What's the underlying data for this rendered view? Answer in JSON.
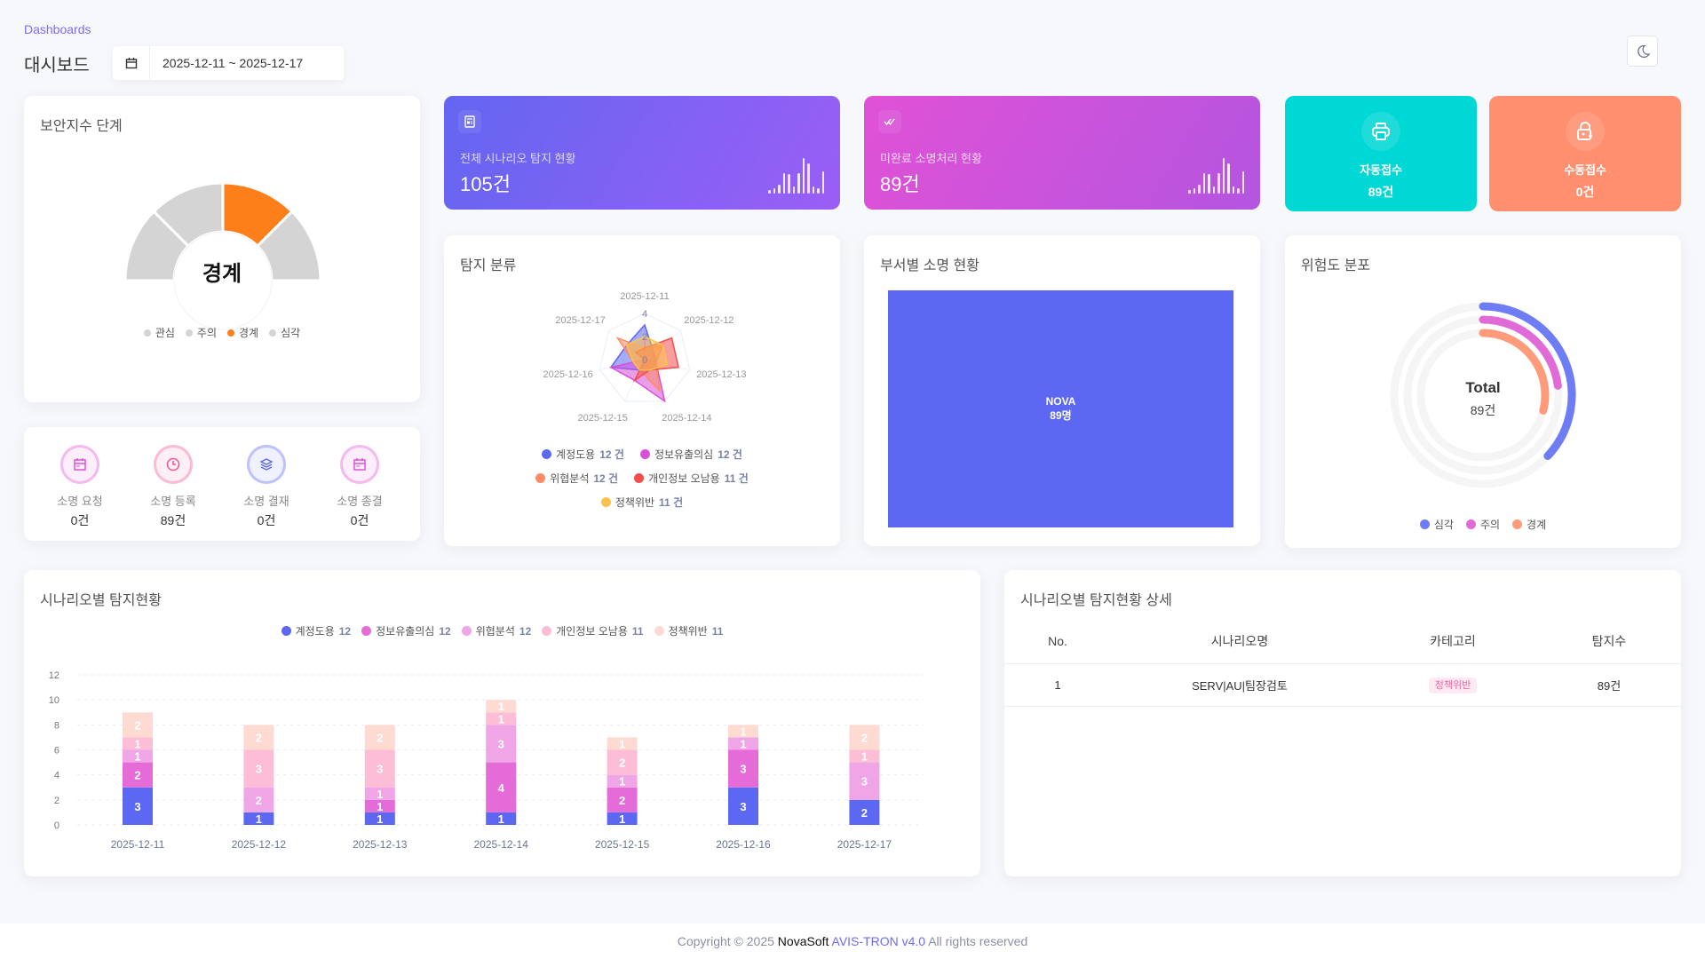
{
  "header": {
    "breadcrumb": "Dashboards",
    "title": "대시보드",
    "date_range": "2025-12-11 ~ 2025-12-17",
    "calendar_icon": "calendar-icon",
    "theme_icon": "moon-icon"
  },
  "security_level": {
    "title": "보안지수 단계",
    "current": "경계",
    "levels": [
      "관심",
      "주의",
      "경계",
      "심각"
    ],
    "active_index": 2,
    "colors": {
      "active": "#fd7f1a",
      "inactive": "#d4d4d4"
    }
  },
  "stats": [
    {
      "label": "전체 시나리오 탐지 현황",
      "value": "105건",
      "icon": "document-icon",
      "sparkline": [
        3,
        4,
        7,
        17,
        16,
        6,
        17,
        29,
        25,
        6,
        4,
        18
      ]
    },
    {
      "label": "미완료 소명처리 현황",
      "value": "89건",
      "icon": "double-check-icon",
      "sparkline": [
        3,
        4,
        7,
        17,
        16,
        6,
        17,
        29,
        25,
        6,
        4,
        18
      ]
    }
  ],
  "tiles": [
    {
      "label": "자동접수",
      "value": "89건",
      "icon": "printer-icon",
      "color": "#00d8d6"
    },
    {
      "label": "수동접수",
      "value": "0건",
      "icon": "lock-bolt-icon",
      "color": "#ff8f6f"
    }
  ],
  "process": [
    {
      "label": "소명 요청",
      "value": "0건",
      "icon": "calendar-icon",
      "color": "#e052d6"
    },
    {
      "label": "소명 등록",
      "value": "89건",
      "icon": "clock-icon",
      "color": "#f25596"
    },
    {
      "label": "소명 결재",
      "value": "0건",
      "icon": "layers-icon",
      "color": "#5c67f2"
    },
    {
      "label": "소명 종결",
      "value": "0건",
      "icon": "calendar-icon",
      "color": "#e052d6"
    }
  ],
  "radar": {
    "title": "탐지 분류",
    "axis_labels": [
      "2025-12-11",
      "2025-12-12",
      "2025-12-13",
      "2025-12-14",
      "2025-12-15",
      "2025-12-16",
      "2025-12-17"
    ],
    "ticks": [
      "0",
      "2",
      "4"
    ],
    "legend": [
      {
        "label": "계정도용",
        "count": "12 건",
        "color": "#5c67f2"
      },
      {
        "label": "정보유출의심",
        "count": "12 건",
        "color": "#d94fd9"
      },
      {
        "label": "위협분석",
        "count": "12 건",
        "color": "#ff8a65"
      },
      {
        "label": "개인정보 오남용",
        "count": "11 건",
        "color": "#f44d4d"
      },
      {
        "label": "정책위반",
        "count": "11 건",
        "color": "#fdc24b"
      }
    ]
  },
  "department": {
    "title": "부서별 소명 현황",
    "items": [
      {
        "name": "NOVA",
        "value": "89명",
        "color": "#5c67f2"
      }
    ]
  },
  "risk": {
    "title": "위험도 분포",
    "center_label": "Total",
    "center_value": "89건",
    "series": [
      {
        "label": "심각",
        "percent": 37,
        "color": "#6e7cf6"
      },
      {
        "label": "주의",
        "percent": 23,
        "color": "#e06bd8"
      },
      {
        "label": "경계",
        "percent": 29,
        "color": "#ff9a7a"
      }
    ]
  },
  "chart_data": {
    "type": "bar",
    "stacked": true,
    "title": "시나리오별 탐지현황",
    "categories": [
      "2025-12-11",
      "2025-12-12",
      "2025-12-13",
      "2025-12-14",
      "2025-12-15",
      "2025-12-16",
      "2025-12-17"
    ],
    "ylim": [
      0,
      12
    ],
    "yticks": [
      "0",
      "2",
      "4",
      "6",
      "8",
      "10",
      "12"
    ],
    "grid": true,
    "legend_position": "top",
    "series": [
      {
        "name": "계정도용",
        "total": "12",
        "color": "#5c67f2",
        "values": [
          3,
          1,
          1,
          1,
          1,
          3,
          2
        ]
      },
      {
        "name": "정보유출의심",
        "total": "12",
        "color": "#e56bd8",
        "values": [
          2,
          0,
          1,
          4,
          2,
          3,
          0
        ]
      },
      {
        "name": "위협분석",
        "total": "12",
        "color": "#f0a6e6",
        "values": [
          1,
          2,
          1,
          3,
          1,
          1,
          3
        ]
      },
      {
        "name": "개인정보 오남용",
        "total": "11",
        "color": "#fdbdd6",
        "values": [
          1,
          3,
          3,
          1,
          2,
          0,
          1
        ]
      },
      {
        "name": "정책위반",
        "total": "11",
        "color": "#fedbd2",
        "values": [
          2,
          2,
          2,
          1,
          1,
          1,
          2
        ]
      }
    ]
  },
  "table": {
    "title": "시나리오별 탐지현황 상세",
    "columns": [
      "No.",
      "시나리오명",
      "카테고리",
      "탐지수"
    ],
    "rows": [
      {
        "no": "1",
        "name": "SERV|AU|팀장검토",
        "category": "정책위반",
        "count": "89건"
      }
    ]
  },
  "footer": {
    "prefix": "Copyright © 2025",
    "company": "NovaSoft",
    "product": "AVIS-TRON v4.0",
    "suffix": "All rights reserved"
  }
}
